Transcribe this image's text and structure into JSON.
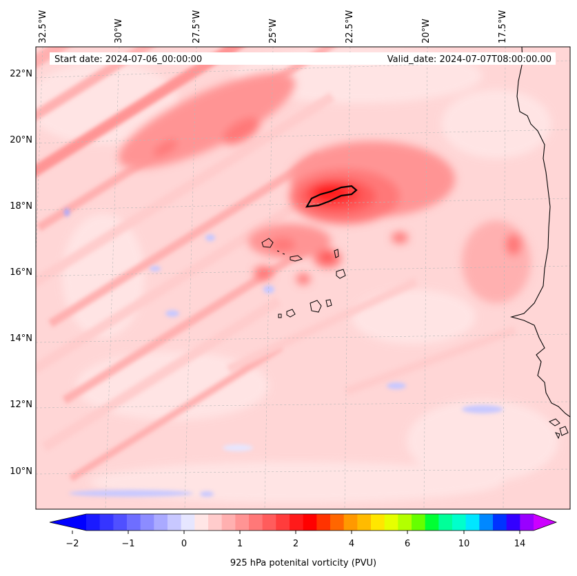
{
  "header": {
    "start_date": "Start date: 2024-07-06_00:00:00",
    "valid_date": "Valid_date: 2024-07-07T08:00:00.00"
  },
  "map": {
    "lon_labels": [
      "32.5°W",
      "30°W",
      "27.5°W",
      "25°W",
      "22.5°W",
      "20°W",
      "17.5°W"
    ],
    "lat_labels": [
      "22°N",
      "20°N",
      "18°N",
      "16°N",
      "14°N",
      "12°N",
      "10°N"
    ],
    "coastline_color": "#000000",
    "gridline_color": "#b0b0b0"
  },
  "colorbar": {
    "label": "925 hPa potenital vorticity (PVU)",
    "tick_labels": [
      "−2",
      "−1",
      "0",
      "1",
      "2",
      "4",
      "6",
      "10",
      "14"
    ],
    "colors": [
      "#1a1aff",
      "#3535ff",
      "#5050ff",
      "#6e6eff",
      "#8c8cff",
      "#aaaaff",
      "#c8c8ff",
      "#e6e6ff",
      "#ffe6e6",
      "#ffcccc",
      "#ffb0b0",
      "#ff9494",
      "#ff7878",
      "#ff5c5c",
      "#ff3c3c",
      "#ff1a1a",
      "#ff0000",
      "#ff3300",
      "#ff6600",
      "#ff9900",
      "#ffbb00",
      "#ffe600",
      "#e6ff00",
      "#b3ff00",
      "#66ff00",
      "#00ff33",
      "#00ff99",
      "#00ffcc",
      "#00e6ff",
      "#0088ff",
      "#0033ff",
      "#3300ff",
      "#9900ff"
    ],
    "under_color": "#0000ff",
    "over_color": "#cc00ff"
  }
}
